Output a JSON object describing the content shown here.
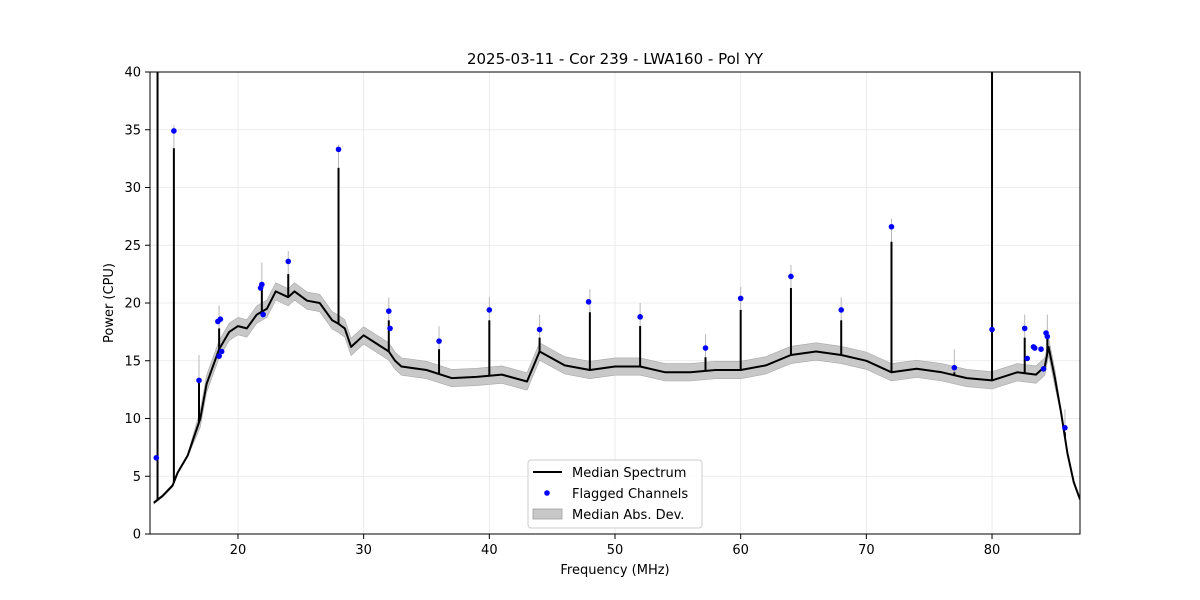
{
  "chart_data": {
    "type": "line",
    "title": "2025-03-11 - Cor 239 - LWA160 - Pol YY",
    "xlabel": "Frequency (MHz)",
    "ylabel": "Power (CPU)",
    "xlim": [
      13.0,
      87.0
    ],
    "ylim": [
      0,
      40
    ],
    "xticks": [
      20,
      30,
      40,
      50,
      60,
      70,
      80
    ],
    "yticks": [
      0,
      5,
      10,
      15,
      20,
      25,
      30,
      35,
      40
    ],
    "grid": true,
    "legend_position": "lower-center",
    "colors": {
      "median": "#000000",
      "flagged": "#0000ff",
      "mad_band": "#c8c8c8"
    },
    "series": [
      {
        "name": "Median Spectrum",
        "kind": "line",
        "x": [
          13.3,
          14.0,
          14.8,
          15.2,
          16.0,
          17.0,
          17.5,
          18.5,
          19.3,
          20.0,
          20.7,
          21.5,
          22.3,
          23.0,
          24.0,
          24.5,
          25.5,
          26.5,
          27.5,
          28.0,
          28.5,
          29.0,
          30.0,
          31.0,
          32.0,
          32.5,
          33.0,
          35.0,
          37.0,
          39.0,
          41.0,
          43.0,
          44.0,
          46.0,
          48.0,
          50.0,
          52.0,
          54.0,
          56.0,
          58.0,
          60.0,
          62.0,
          64.0,
          66.0,
          68.0,
          70.0,
          72.0,
          74.0,
          76.0,
          78.0,
          80.0,
          82.0,
          83.5,
          84.2,
          84.5,
          85.0,
          85.5,
          86.0,
          86.5,
          87.0
        ],
        "y": [
          2.7,
          3.3,
          4.2,
          5.3,
          6.8,
          10.0,
          13.0,
          16.0,
          17.5,
          18.0,
          17.8,
          19.0,
          19.5,
          21.0,
          20.5,
          21.0,
          20.2,
          20.0,
          18.5,
          18.2,
          17.8,
          16.2,
          17.2,
          16.5,
          15.8,
          15.0,
          14.5,
          14.2,
          13.5,
          13.6,
          13.8,
          13.2,
          15.8,
          14.6,
          14.2,
          14.5,
          14.5,
          14.0,
          14.0,
          14.2,
          14.2,
          14.6,
          15.5,
          15.8,
          15.5,
          15.0,
          14.0,
          14.3,
          14.0,
          13.5,
          13.3,
          14.0,
          13.8,
          14.5,
          16.2,
          13.5,
          10.5,
          7.0,
          4.5,
          3.0
        ]
      },
      {
        "name": "Flagged Channels",
        "kind": "scatter",
        "x": [
          13.5,
          14.9,
          16.9,
          18.4,
          18.6,
          18.5,
          18.7,
          21.8,
          21.9,
          22.0,
          24.0,
          28.0,
          32.0,
          32.1,
          36.0,
          40.0,
          44.0,
          47.9,
          52.0,
          57.2,
          60.0,
          64.0,
          68.0,
          72.0,
          77.0,
          80.0,
          82.6,
          82.8,
          83.3,
          83.4,
          83.9,
          84.1,
          84.3,
          84.4,
          85.8
        ],
        "y": [
          6.6,
          34.9,
          13.3,
          18.4,
          18.6,
          15.4,
          15.8,
          21.3,
          21.6,
          19.0,
          23.6,
          33.3,
          19.3,
          17.8,
          16.7,
          19.4,
          17.7,
          20.1,
          18.8,
          16.1,
          20.4,
          22.3,
          19.4,
          26.6,
          14.4,
          17.7,
          17.8,
          15.2,
          16.2,
          16.1,
          16.0,
          14.3,
          17.4,
          17.1,
          9.2
        ]
      },
      {
        "name": "Median Abs. Dev.",
        "kind": "band",
        "halfwidth": 0.75
      }
    ],
    "spikes": [
      {
        "x": 13.6,
        "y": 40.0
      },
      {
        "x": 14.9,
        "y": 33.4
      },
      {
        "x": 16.9,
        "y": 13.5
      },
      {
        "x": 18.5,
        "y": 17.8
      },
      {
        "x": 21.9,
        "y": 21.5
      },
      {
        "x": 24.0,
        "y": 22.5
      },
      {
        "x": 28.0,
        "y": 31.7
      },
      {
        "x": 32.0,
        "y": 18.5
      },
      {
        "x": 36.0,
        "y": 16.0
      },
      {
        "x": 40.0,
        "y": 18.5
      },
      {
        "x": 44.0,
        "y": 17.0
      },
      {
        "x": 48.0,
        "y": 19.2
      },
      {
        "x": 52.0,
        "y": 18.0
      },
      {
        "x": 57.2,
        "y": 15.3
      },
      {
        "x": 60.0,
        "y": 19.4
      },
      {
        "x": 64.0,
        "y": 21.3
      },
      {
        "x": 68.0,
        "y": 18.5
      },
      {
        "x": 72.0,
        "y": 25.3
      },
      {
        "x": 77.0,
        "y": 14.0
      },
      {
        "x": 80.0,
        "y": 40.0
      },
      {
        "x": 82.6,
        "y": 17.0
      },
      {
        "x": 84.4,
        "y": 17.0
      },
      {
        "x": 85.8,
        "y": 8.8
      }
    ]
  },
  "legend": {
    "median": "Median Spectrum",
    "flagged": "Flagged Channels",
    "mad": "Median Abs. Dev."
  }
}
